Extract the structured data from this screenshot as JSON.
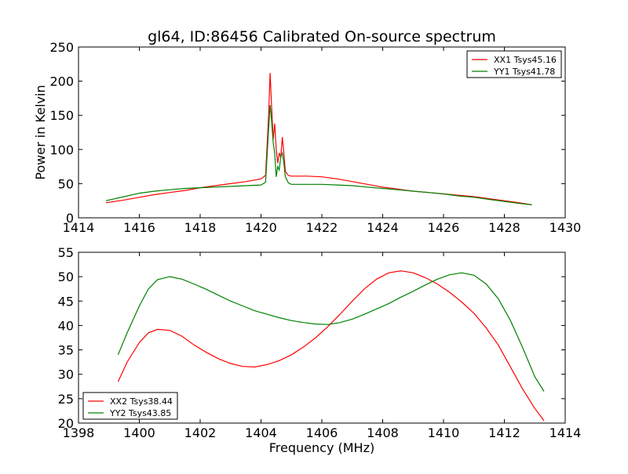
{
  "figure": {
    "title": "gl64, ID:86456 Calibrated On-source spectrum"
  },
  "chart_data": [
    {
      "type": "line",
      "title": "gl64, ID:86456 Calibrated On-source spectrum",
      "xlabel": "",
      "ylabel": "Power in Kelvin",
      "xlim": [
        1414,
        1430
      ],
      "ylim": [
        0,
        250
      ],
      "xticks": [
        "1414",
        "1416",
        "1418",
        "1420",
        "1422",
        "1424",
        "1426",
        "1428",
        "1430"
      ],
      "yticks": [
        "0",
        "50",
        "100",
        "150",
        "200",
        "250"
      ],
      "grid": false,
      "legend_position": "top-right",
      "series": [
        {
          "name": "XX1 Tsys45.16",
          "color": "#ff0000",
          "x": [
            1414.9,
            1415.5,
            1416.0,
            1416.5,
            1417.0,
            1417.5,
            1418.0,
            1418.5,
            1419.0,
            1419.5,
            1420.0,
            1420.15,
            1420.25,
            1420.3,
            1420.35,
            1420.4,
            1420.45,
            1420.5,
            1420.55,
            1420.6,
            1420.65,
            1420.7,
            1420.75,
            1420.8,
            1420.9,
            1421.0,
            1421.5,
            1422.0,
            1422.5,
            1423.0,
            1423.5,
            1424.0,
            1424.5,
            1425.0,
            1425.5,
            1426.0,
            1426.5,
            1427.0,
            1427.5,
            1428.0,
            1428.5,
            1428.9
          ],
          "y": [
            22,
            26,
            30,
            34,
            37,
            40,
            44,
            47,
            50,
            53,
            57,
            62,
            150,
            212,
            160,
            115,
            138,
            100,
            80,
            95,
            88,
            118,
            95,
            68,
            62,
            61,
            61,
            60,
            57,
            53,
            49,
            45,
            42,
            39,
            37,
            35,
            33,
            31,
            28,
            25,
            22,
            19
          ]
        },
        {
          "name": "YY1 Tsys41.78",
          "color": "#008000",
          "x": [
            1414.9,
            1415.5,
            1416.0,
            1416.5,
            1417.0,
            1417.5,
            1418.0,
            1418.5,
            1419.0,
            1419.5,
            1420.0,
            1420.15,
            1420.25,
            1420.3,
            1420.35,
            1420.4,
            1420.45,
            1420.5,
            1420.55,
            1420.6,
            1420.65,
            1420.7,
            1420.75,
            1420.8,
            1420.9,
            1421.0,
            1421.5,
            1422.0,
            1422.5,
            1423.0,
            1423.5,
            1424.0,
            1424.5,
            1425.0,
            1425.5,
            1426.0,
            1426.5,
            1427.0,
            1427.5,
            1428.0,
            1428.5,
            1428.9
          ],
          "y": [
            25,
            31,
            36,
            39,
            41,
            43,
            44,
            45,
            46,
            47,
            48,
            52,
            130,
            165,
            140,
            110,
            95,
            60,
            75,
            70,
            90,
            95,
            80,
            60,
            51,
            49,
            49,
            49,
            48,
            47,
            45,
            43,
            41,
            39,
            37,
            35,
            32,
            30,
            27,
            24,
            21,
            19
          ]
        }
      ]
    },
    {
      "type": "line",
      "title": "",
      "xlabel": "Frequency (MHz)",
      "ylabel": "",
      "xlim": [
        1398,
        1414
      ],
      "ylim": [
        20,
        55
      ],
      "xticks": [
        "1398",
        "1400",
        "1402",
        "1404",
        "1406",
        "1408",
        "1410",
        "1412",
        "1414"
      ],
      "yticks": [
        "20",
        "25",
        "30",
        "35",
        "40",
        "45",
        "50",
        "55"
      ],
      "grid": false,
      "legend_position": "bottom-left",
      "series": [
        {
          "name": "XX2 Tsys38.44",
          "color": "#ff0000",
          "x": [
            1399.3,
            1399.6,
            1400.0,
            1400.3,
            1400.6,
            1401.0,
            1401.4,
            1401.8,
            1402.2,
            1402.6,
            1403.0,
            1403.4,
            1403.8,
            1404.2,
            1404.6,
            1405.0,
            1405.4,
            1405.8,
            1406.2,
            1406.6,
            1407.0,
            1407.4,
            1407.8,
            1408.2,
            1408.6,
            1409.0,
            1409.4,
            1409.8,
            1410.2,
            1410.6,
            1411.0,
            1411.4,
            1411.8,
            1412.2,
            1412.6,
            1413.0,
            1413.3
          ],
          "y": [
            28.5,
            32.5,
            36.5,
            38.5,
            39.2,
            39.0,
            37.8,
            36.0,
            34.5,
            33.2,
            32.2,
            31.6,
            31.5,
            32.0,
            32.8,
            34.0,
            35.6,
            37.5,
            39.8,
            42.3,
            45.0,
            47.5,
            49.5,
            50.8,
            51.2,
            50.8,
            49.8,
            48.5,
            46.8,
            44.8,
            42.5,
            39.5,
            36.0,
            31.5,
            27.0,
            23.0,
            20.5
          ]
        },
        {
          "name": "YY2 Tsys43.85",
          "color": "#008000",
          "x": [
            1399.3,
            1399.6,
            1400.0,
            1400.3,
            1400.6,
            1401.0,
            1401.4,
            1401.8,
            1402.2,
            1402.6,
            1403.0,
            1403.4,
            1403.8,
            1404.2,
            1404.6,
            1405.0,
            1405.4,
            1405.8,
            1406.2,
            1406.6,
            1407.0,
            1407.4,
            1407.8,
            1408.2,
            1408.6,
            1409.0,
            1409.4,
            1409.8,
            1410.2,
            1410.6,
            1411.0,
            1411.4,
            1411.8,
            1412.2,
            1412.6,
            1413.0,
            1413.3
          ],
          "y": [
            34.0,
            38.5,
            44.0,
            47.5,
            49.4,
            50.0,
            49.5,
            48.5,
            47.4,
            46.2,
            45.0,
            44.0,
            43.0,
            42.3,
            41.6,
            41.0,
            40.6,
            40.3,
            40.2,
            40.6,
            41.3,
            42.3,
            43.4,
            44.5,
            45.8,
            47.0,
            48.3,
            49.5,
            50.4,
            50.8,
            50.3,
            48.5,
            45.5,
            41.0,
            35.5,
            29.5,
            26.5
          ]
        }
      ]
    }
  ]
}
